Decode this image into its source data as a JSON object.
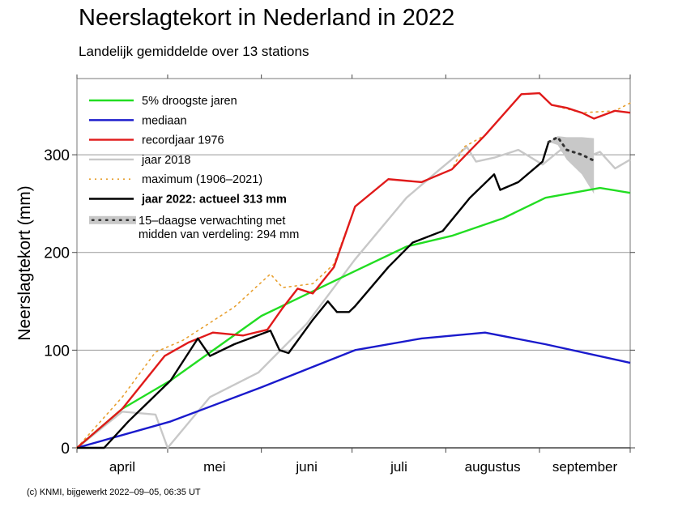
{
  "chart_data": {
    "type": "line",
    "title": "Neerslagtekort in Nederland in 2022",
    "subtitle": "Landelijk gemiddelde over 13 stations",
    "xlabel": "",
    "ylabel": "Neerslagtekort (mm)",
    "x_unit": "days since 1 April",
    "xlim": [
      0,
      183
    ],
    "ylim": [
      0,
      378
    ],
    "yticks": [
      0,
      100,
      200,
      300
    ],
    "grid": "horizontal at 100, 200, 300",
    "month_ticks": [
      0,
      30,
      61,
      91,
      122,
      153,
      183
    ],
    "month_labels": [
      "april",
      "mei",
      "juni",
      "juli",
      "augustus",
      "september"
    ],
    "legend_position": "top-left",
    "series": [
      {
        "name": "5% droogste jaren",
        "color": "#22dd22",
        "style": "solid",
        "x": [
          0,
          15,
          31,
          61,
          92,
          109,
          124,
          141,
          155,
          173,
          183
        ],
        "y": [
          0,
          40,
          69,
          135,
          181,
          206,
          217,
          235,
          256,
          266,
          261
        ]
      },
      {
        "name": "mediaan",
        "color": "#1a1acc",
        "style": "solid",
        "x": [
          0,
          31,
          61,
          92,
          114,
          135,
          155,
          183
        ],
        "y": [
          0,
          27,
          62,
          100,
          112,
          118,
          106,
          87
        ]
      },
      {
        "name": "recordjaar 1976",
        "color": "#e01a1a",
        "style": "solid",
        "x": [
          0,
          15,
          29,
          37,
          45,
          55,
          63,
          68,
          73,
          78,
          85,
          92,
          103,
          114,
          124,
          135,
          147,
          153,
          157,
          162,
          167,
          171,
          178,
          183
        ],
        "y": [
          0,
          40,
          94,
          108,
          118,
          115,
          121,
          143,
          163,
          158,
          185,
          247,
          275,
          272,
          285,
          320,
          362,
          363,
          351,
          348,
          343,
          337,
          345,
          343
        ]
      },
      {
        "name": "jaar 2018",
        "color": "#c8c8c8",
        "style": "solid",
        "x": [
          0,
          15,
          26,
          30,
          44,
          60,
          76,
          92,
          109,
          120,
          129,
          132,
          138,
          146,
          154,
          160,
          165,
          173,
          178,
          183
        ],
        "y": [
          0,
          37,
          34,
          0,
          52,
          77,
          127,
          193,
          256,
          285,
          308,
          293,
          297,
          305,
          290,
          305,
          293,
          303,
          286,
          295
        ]
      },
      {
        "name": "maximum (1906–2021)",
        "color": "#e8a030",
        "style": "dotted",
        "x": [
          0,
          15,
          26,
          35,
          52,
          64,
          68,
          78,
          85,
          92,
          103,
          114,
          124,
          128,
          135,
          147,
          153,
          157,
          167,
          178,
          183
        ],
        "y": [
          0,
          52,
          98,
          110,
          144,
          178,
          164,
          168,
          188,
          247,
          275,
          272,
          285,
          308,
          320,
          362,
          363,
          351,
          343,
          345,
          353
        ]
      },
      {
        "name": "jaar 2022: actueel 313 mm",
        "color": "#000000",
        "style": "solid",
        "x": [
          0,
          9,
          17,
          31,
          40,
          44,
          52,
          64,
          67,
          70,
          78,
          83,
          86,
          90,
          92,
          103,
          111,
          121,
          130,
          138,
          140,
          146,
          154,
          156
        ],
        "y": [
          0,
          0,
          27,
          69,
          112,
          94,
          106,
          120,
          100,
          97,
          131,
          150,
          139,
          139,
          145,
          185,
          210,
          222,
          256,
          280,
          264,
          272,
          293,
          313
        ]
      },
      {
        "name": "15–daagse verwachting met midden van verdeling: 294 mm",
        "color": "#333333",
        "style": "dotted",
        "x": [
          156,
          159,
          162,
          167,
          171
        ],
        "y": [
          313,
          318,
          305,
          300,
          294
        ],
        "band_upper": [
          313,
          319,
          318,
          318,
          317
        ],
        "band_lower": [
          313,
          310,
          295,
          280,
          260
        ]
      }
    ]
  },
  "credit": "(c) KNMI, bijgewerkt 2022–09–05, 06:35 UT"
}
